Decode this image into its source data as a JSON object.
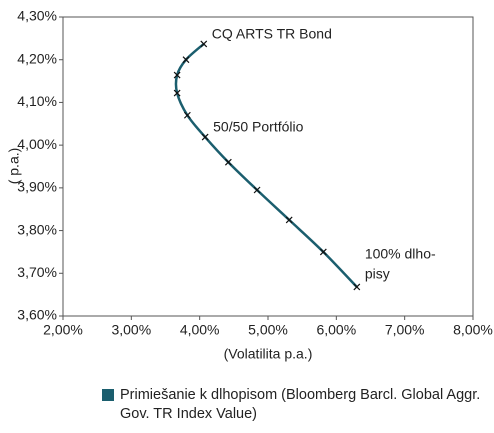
{
  "chart_data": {
    "type": "line",
    "xlabel": "(Volatilita p.a.)",
    "ylabel": "( p.a.)",
    "series": [
      {
        "name": "Primiešanie k dlhopisom (Bloomberg Barcl. Global Aggr. Gov. TR Index Value)",
        "color": "#1b5e6e",
        "x": [
          4.06,
          3.8,
          3.67,
          3.67,
          3.82,
          4.08,
          4.42,
          4.84,
          5.31,
          5.81,
          6.3
        ],
        "values": [
          4.237,
          4.2,
          4.164,
          4.122,
          4.07,
          4.019,
          3.96,
          3.895,
          3.825,
          3.75,
          3.668
        ]
      }
    ],
    "annotations": [
      {
        "text": "CQ ARTS TR Bond",
        "point": 0
      },
      {
        "text": "50/50 Portfólio",
        "point": 5
      },
      {
        "lines": [
          "100% dlho-",
          "pisy"
        ],
        "point": 10
      }
    ],
    "xlim": [
      2,
      8
    ],
    "xticks": [
      {
        "value": 2,
        "label": "2,00%"
      },
      {
        "value": 3,
        "label": "3,00%"
      },
      {
        "value": 4,
        "label": "4,00%"
      },
      {
        "value": 5,
        "label": "5,00%"
      },
      {
        "value": 6,
        "label": "6,00%"
      },
      {
        "value": 7,
        "label": "7,00%"
      },
      {
        "value": 8,
        "label": "8,00%"
      }
    ],
    "ylim": [
      3.6,
      4.3
    ],
    "yticks": [
      {
        "value": 3.6,
        "label": "3,60%"
      },
      {
        "value": 3.7,
        "label": "3,70%"
      },
      {
        "value": 3.8,
        "label": "3,80%"
      },
      {
        "value": 3.9,
        "label": "3,90%"
      },
      {
        "value": 4.0,
        "label": "4,00%"
      },
      {
        "value": 4.1,
        "label": "4,10%"
      },
      {
        "value": 4.2,
        "label": "4,20%"
      },
      {
        "value": 4.3,
        "label": "4,30%"
      }
    ],
    "grid": false
  }
}
